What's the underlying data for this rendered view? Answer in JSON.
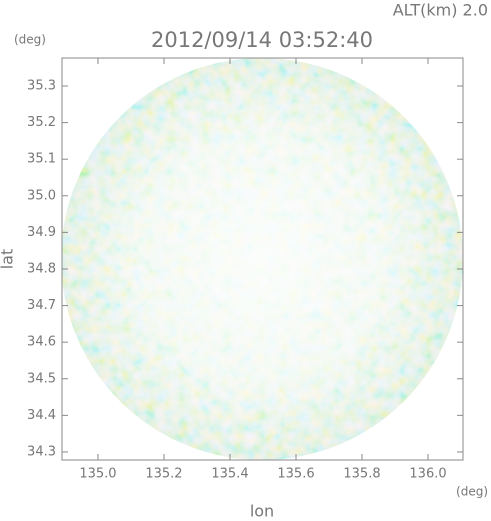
{
  "chart_data": {
    "type": "image",
    "title": "2012/09/14 03:52:40",
    "subtitle": "ALT(km) 2.0",
    "x_label": "lon",
    "y_label": "lat",
    "x_unit": "(deg)",
    "y_unit": "(deg)",
    "xlim": [
      134.891,
      136.106
    ],
    "ylim": [
      34.278,
      35.3765
    ],
    "xticks": [
      {
        "value": 135,
        "label": "135.0"
      },
      135.2,
      135.4,
      135.6,
      135.8,
      {
        "value": 136,
        "label": "136.0"
      }
    ],
    "yticks": [
      34.3,
      34.4,
      34.5,
      34.6,
      34.7,
      34.8,
      34.9,
      {
        "value": 35,
        "label": "35.0"
      },
      35.1,
      35.2,
      35.3
    ]
  }
}
